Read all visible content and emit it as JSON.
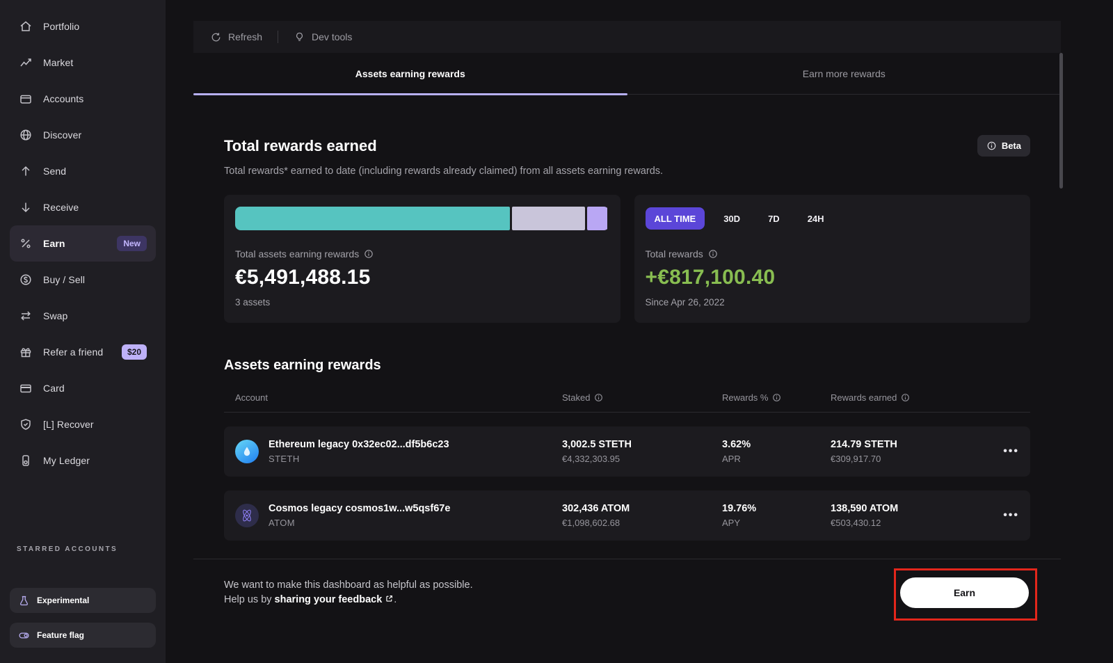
{
  "colors": {
    "accent_purple": "#5b46d8",
    "tab_underline": "#b7b0f2",
    "positive_green": "#88bd51",
    "annotation_red": "#e3261b"
  },
  "sidebar": {
    "items": [
      {
        "label": "Portfolio"
      },
      {
        "label": "Market"
      },
      {
        "label": "Accounts"
      },
      {
        "label": "Discover"
      },
      {
        "label": "Send"
      },
      {
        "label": "Receive"
      },
      {
        "label": "Earn",
        "badge": "New"
      },
      {
        "label": "Buy / Sell"
      },
      {
        "label": "Swap"
      },
      {
        "label": "Refer a friend",
        "badge": "$20"
      },
      {
        "label": "Card"
      },
      {
        "label": "[L] Recover"
      },
      {
        "label": "My Ledger"
      }
    ],
    "starred_header": "STARRED ACCOUNTS",
    "experimental_label": "Experimental",
    "feature_flag_label": "Feature flag"
  },
  "topbar": {
    "refresh_label": "Refresh",
    "devtools_label": "Dev tools"
  },
  "tabs": [
    {
      "label": "Assets earning rewards"
    },
    {
      "label": "Earn more rewards"
    }
  ],
  "rewards_summary": {
    "title": "Total rewards earned",
    "beta_label": "Beta",
    "description": "Total rewards* earned to date (including rewards already claimed) from all assets earning rewards."
  },
  "total_assets_card": {
    "bar_segments": [
      {
        "color": "#56c4c0",
        "percent": 73.5
      },
      {
        "color": "#c9c5da",
        "percent": 19.5
      },
      {
        "color": "#b9a7f4",
        "percent": 5.5
      }
    ],
    "label": "Total assets earning rewards",
    "value": "€5,491,488.15",
    "subtext": "3 assets"
  },
  "total_rewards_card": {
    "filters": [
      "ALL TIME",
      "30D",
      "7D",
      "24H"
    ],
    "active_filter": "ALL TIME",
    "label": "Total rewards",
    "value": "+€817,100.40",
    "subtext": "Since Apr 26, 2022"
  },
  "table": {
    "section_title": "Assets earning rewards",
    "columns": [
      "Account",
      "Staked",
      "Rewards %",
      "Rewards earned"
    ],
    "rows": [
      {
        "name": "Ethereum legacy 0x32ec02...df5b6c23",
        "ticker": "STETH",
        "staked_amount": "3,002.5 STETH",
        "staked_fiat": "€4,332,303.95",
        "rate": "3.62%",
        "rate_type": "APR",
        "earned_amount": "214.79 STETH",
        "earned_fiat": "€309,917.70",
        "menu": "•••"
      },
      {
        "name": "Cosmos legacy cosmos1w...w5qsf67e",
        "ticker": "ATOM",
        "staked_amount": "302,436 ATOM",
        "staked_fiat": "€1,098,602.68",
        "rate": "19.76%",
        "rate_type": "APY",
        "earned_amount": "138,590 ATOM",
        "earned_fiat": "€503,430.12",
        "menu": "•••"
      }
    ]
  },
  "footer": {
    "line1": "We want to make this dashboard as helpful as possible.",
    "line2_prefix": "Help us by ",
    "line2_link": "sharing your feedback",
    "line2_suffix": ".",
    "earn_button": "Earn"
  }
}
